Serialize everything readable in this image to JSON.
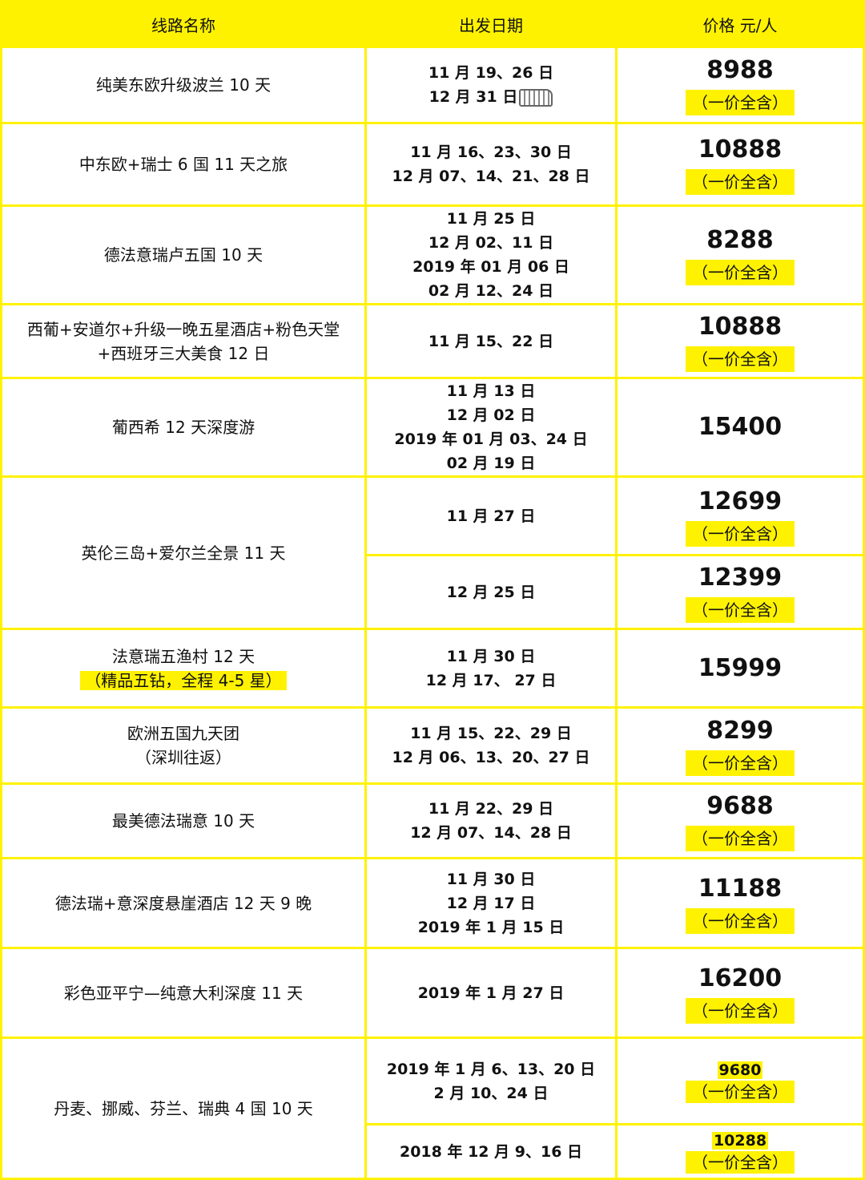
{
  "header": {
    "col_route": "线路名称",
    "col_date": "出发日期",
    "col_price": "价格  元/人"
  },
  "note_label": "（一价全含）",
  "routes": [
    {
      "name": [
        "纯美东欧升级波兰 10 天"
      ],
      "entries": [
        {
          "dates": [
            "11 月 19、26 日",
            "12 月 31 日"
          ],
          "price": "8988",
          "note": true,
          "bus": true
        }
      ]
    },
    {
      "name": [
        "中东欧+瑞士 6 国 11 天之旅"
      ],
      "entries": [
        {
          "dates": [
            "11 月 16、23、30 日",
            "12 月 07、14、21、28 日"
          ],
          "price": "10888",
          "note": true
        }
      ]
    },
    {
      "name": [
        "德法意瑞卢五国 10 天"
      ],
      "entries": [
        {
          "dates": [
            "11 月 25 日",
            "12 月 02、11 日",
            "2019 年 01 月 06 日",
            "02 月 12、24 日"
          ],
          "price": "8288",
          "note": true
        }
      ]
    },
    {
      "name": [
        "西葡+安道尔+升级一晚五星酒店+粉色天堂",
        "+西班牙三大美食  12 日"
      ],
      "entries": [
        {
          "dates": [
            "11 月 15、22 日"
          ],
          "price": "10888",
          "note": true
        }
      ]
    },
    {
      "name": [
        "葡西希 12 天深度游"
      ],
      "entries": [
        {
          "dates": [
            "11 月 13 日",
            "12 月 02 日",
            "2019 年 01 月 03、24 日",
            "02 月 19 日"
          ],
          "price": "15400",
          "note": false
        }
      ]
    },
    {
      "name": [
        "英伦三岛+爱尔兰全景 11 天"
      ],
      "entries": [
        {
          "dates": [
            "11 月 27 日"
          ],
          "price": "12699",
          "note": true
        },
        {
          "dates": [
            "12 月 25 日"
          ],
          "price": "12399",
          "note": true
        }
      ]
    },
    {
      "name": [
        "法意瑞五渔村 12 天"
      ],
      "name_highlight": "（精品五钻，全程 4-5 星）",
      "entries": [
        {
          "dates": [
            "11 月 30 日",
            "12 月 17、 27 日"
          ],
          "price": "15999",
          "note": false
        }
      ]
    },
    {
      "name": [
        "欧洲五国九天团",
        "（深圳往返）"
      ],
      "entries": [
        {
          "dates": [
            "11 月 15、22、29 日",
            "12 月 06、13、20、27 日"
          ],
          "price": "8299",
          "note": true
        }
      ]
    },
    {
      "name": [
        "最美德法瑞意 10 天"
      ],
      "entries": [
        {
          "dates": [
            "11 月 22、29 日",
            "12 月 07、14、28 日"
          ],
          "price": "9688",
          "note": true
        }
      ]
    },
    {
      "name": [
        "德法瑞+意深度悬崖酒店 12 天 9 晚"
      ],
      "entries": [
        {
          "dates": [
            "11 月 30 日",
            "12 月 17 日",
            "2019 年 1 月 15 日"
          ],
          "price": "11188",
          "note": true
        }
      ]
    },
    {
      "name": [
        "彩色亚平宁—纯意大利深度 11 天"
      ],
      "entries": [
        {
          "dates": [
            "2019 年 1 月 27 日"
          ],
          "price": "16200",
          "note": true
        }
      ]
    },
    {
      "name": [
        "丹麦、挪威、芬兰、瑞典 4 国 10 天"
      ],
      "entries": [
        {
          "dates": [
            "2019 年 1 月 6、13、20 日",
            "2 月 10、24 日"
          ],
          "price": "9680",
          "note": true,
          "small": true
        },
        {
          "dates": [
            "2018 年 12 月 9、16 日"
          ],
          "price": "10288",
          "note": true,
          "small": true
        }
      ]
    }
  ]
}
